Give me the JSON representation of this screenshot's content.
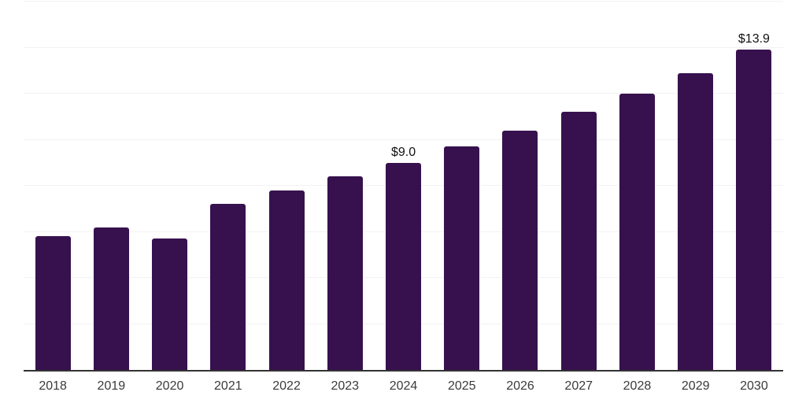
{
  "chart_data": {
    "type": "bar",
    "title": "",
    "xlabel": "",
    "ylabel": "",
    "categories": [
      "2018",
      "2019",
      "2020",
      "2021",
      "2022",
      "2023",
      "2024",
      "2025",
      "2026",
      "2027",
      "2028",
      "2029",
      "2030"
    ],
    "values": [
      5.8,
      6.2,
      5.7,
      7.2,
      7.8,
      8.4,
      9.0,
      9.7,
      10.4,
      11.2,
      12.0,
      12.9,
      13.9
    ],
    "data_labels": [
      {
        "category": "2024",
        "text": "$9.0"
      },
      {
        "category": "2030",
        "text": "$13.9"
      }
    ],
    "ylim": [
      0,
      16
    ],
    "gridline_step": 2,
    "grid": true,
    "legend": false,
    "colors": {
      "bar": "#37114e",
      "gridline": "#f2f2f2",
      "axis": "#333333",
      "tick_text": "#3a3a3a",
      "data_label_text": "#111111",
      "background": "#ffffff"
    }
  }
}
